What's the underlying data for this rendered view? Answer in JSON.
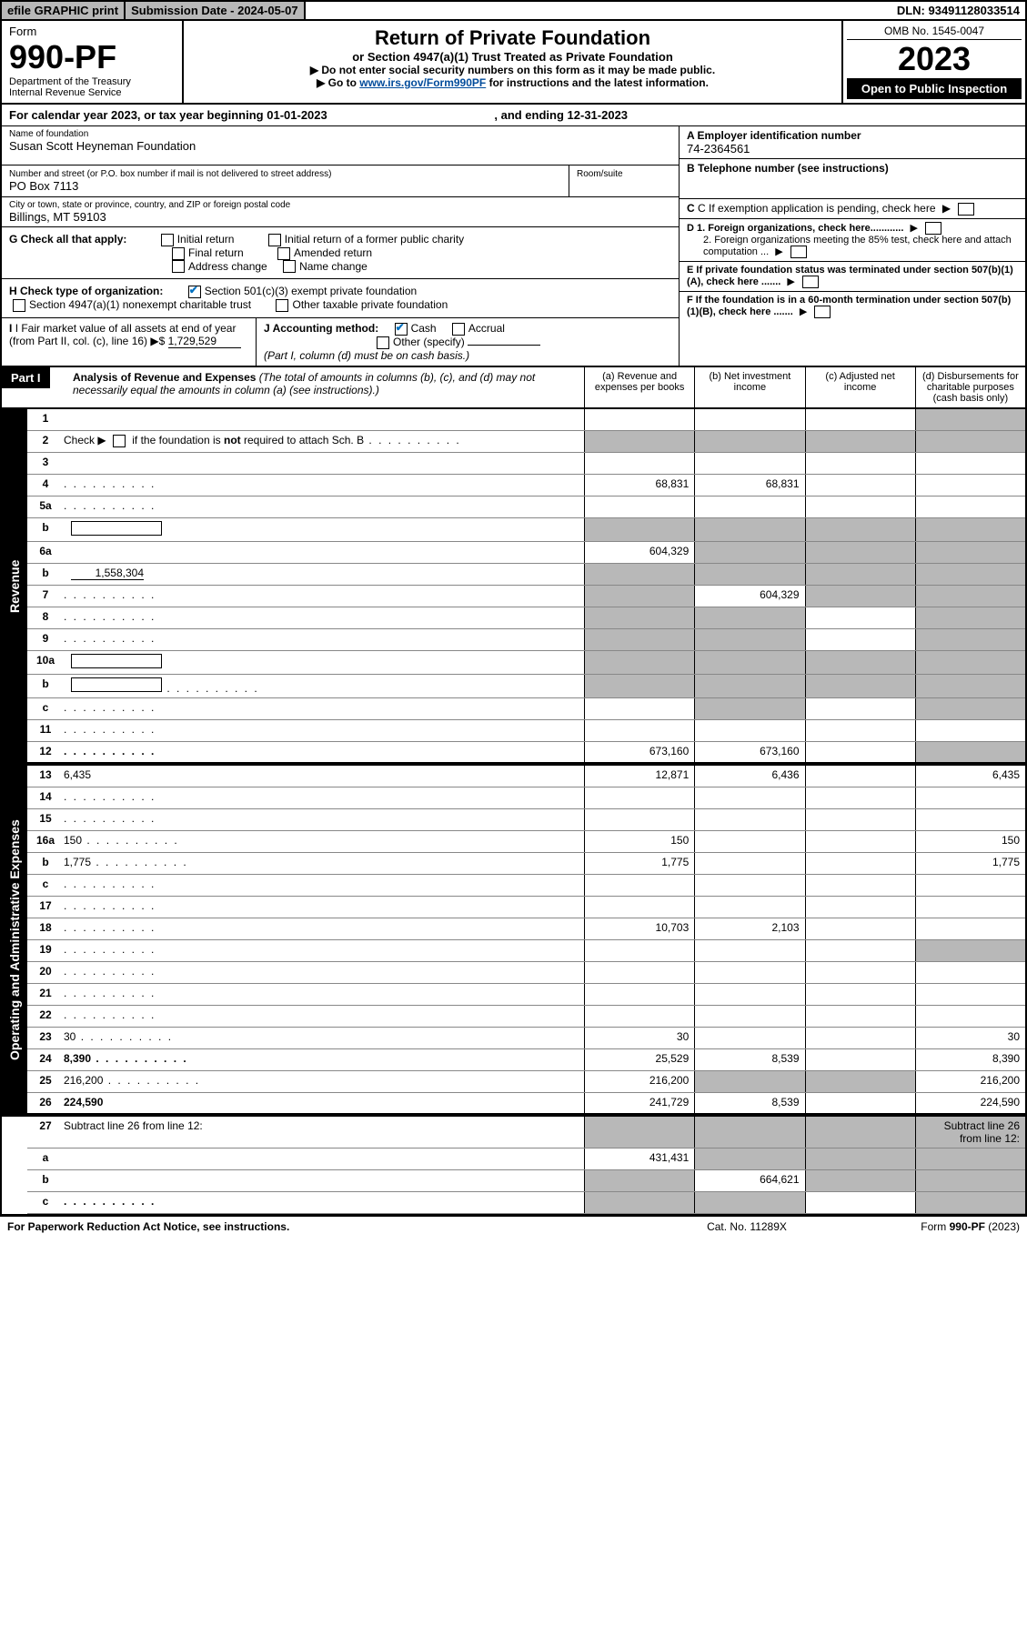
{
  "topbar": {
    "efile": "efile GRAPHIC print",
    "sub_label": "Submission Date - 2024-05-07",
    "dln": "DLN: 93491128033514"
  },
  "header": {
    "form_word": "Form",
    "form_num": "990-PF",
    "dept": "Department of the Treasury",
    "irs": "Internal Revenue Service",
    "title": "Return of Private Foundation",
    "subtitle": "or Section 4947(a)(1) Trust Treated as Private Foundation",
    "instr1": "▶ Do not enter social security numbers on this form as it may be made public.",
    "instr2_pre": "▶ Go to ",
    "instr2_link": "www.irs.gov/Form990PF",
    "instr2_post": " for instructions and the latest information.",
    "omb": "OMB No. 1545-0047",
    "year": "2023",
    "open": "Open to Public Inspection"
  },
  "cal_year": {
    "pre": "For calendar year 2023, or tax year beginning ",
    "begin": "01-01-2023",
    "mid": " , and ending ",
    "end": "12-31-2023"
  },
  "info": {
    "name_label": "Name of foundation",
    "name": "Susan Scott Heyneman Foundation",
    "addr_label": "Number and street (or P.O. box number if mail is not delivered to street address)",
    "room_label": "Room/suite",
    "addr": "PO Box 7113",
    "city_label": "City or town, state or province, country, and ZIP or foreign postal code",
    "city": "Billings, MT  59103",
    "a_label": "A Employer identification number",
    "a_val": "74-2364561",
    "b_label": "B Telephone number (see instructions)",
    "c_label": "C If exemption application is pending, check here",
    "d1": "D 1. Foreign organizations, check here............",
    "d2": "2. Foreign organizations meeting the 85% test, check here and attach computation ...",
    "e": "E  If private foundation status was terminated under section 507(b)(1)(A), check here .......",
    "f": "F  If the foundation is in a 60-month termination under section 507(b)(1)(B), check here .......",
    "g_label": "G Check all that apply:",
    "g_opts": [
      "Initial return",
      "Initial return of a former public charity",
      "Final return",
      "Amended return",
      "Address change",
      "Name change"
    ],
    "h_label": "H Check type of organization:",
    "h_opts": [
      "Section 501(c)(3) exempt private foundation",
      "Section 4947(a)(1) nonexempt charitable trust",
      "Other taxable private foundation"
    ],
    "i_label": "I Fair market value of all assets at end of year (from Part II, col. (c), line 16) ▶$ ",
    "i_val": "1,729,529",
    "j_label": "J Accounting method:",
    "j_opts": [
      "Cash",
      "Accrual",
      "Other (specify)"
    ],
    "j_note": "(Part I, column (d) must be on cash basis.)"
  },
  "part1": {
    "label": "Part I",
    "title": "Analysis of Revenue and Expenses",
    "note": " (The total of amounts in columns (b), (c), and (d) may not necessarily equal the amounts in column (a) (see instructions).)",
    "cols": {
      "a": "(a)  Revenue and expenses per books",
      "b": "(b)  Net investment income",
      "c": "(c)  Adjusted net income",
      "d": "(d)  Disbursements for charitable purposes (cash basis only)"
    }
  },
  "sides": {
    "rev": "Revenue",
    "exp": "Operating and Administrative Expenses"
  },
  "lines": [
    {
      "n": "1",
      "d": "",
      "a": "",
      "b": "",
      "c": "",
      "greyD": true
    },
    {
      "n": "2",
      "d": "",
      "a": "",
      "b": "",
      "c": "",
      "greyAll": true,
      "htmlDesc": true,
      "dots": true
    },
    {
      "n": "3",
      "d": "",
      "a": "",
      "b": "",
      "c": ""
    },
    {
      "n": "4",
      "d": "",
      "a": "68,831",
      "b": "68,831",
      "c": "",
      "dots": true
    },
    {
      "n": "5a",
      "d": "",
      "a": "",
      "b": "",
      "c": "",
      "dots": true
    },
    {
      "n": "b",
      "d": "",
      "a": "",
      "b": "",
      "c": "",
      "greyAll": true,
      "inlineBox": true
    },
    {
      "n": "6a",
      "d": "",
      "a": "604,329",
      "b": "",
      "c": "",
      "greyB": true,
      "greyC": true,
      "greyD": true
    },
    {
      "n": "b",
      "d": "",
      "a": "",
      "b": "",
      "c": "",
      "greyAll": true,
      "inlineVal": "1,558,304"
    },
    {
      "n": "7",
      "d": "",
      "a": "",
      "b": "604,329",
      "c": "",
      "greyA": true,
      "greyC": true,
      "greyD": true,
      "dots": true
    },
    {
      "n": "8",
      "d": "",
      "a": "",
      "b": "",
      "c": "",
      "greyA": true,
      "greyB": true,
      "greyD": true,
      "dots": true
    },
    {
      "n": "9",
      "d": "",
      "a": "",
      "b": "",
      "c": "",
      "greyA": true,
      "greyB": true,
      "greyD": true,
      "dots": true
    },
    {
      "n": "10a",
      "d": "",
      "a": "",
      "b": "",
      "c": "",
      "greyAll": true,
      "inlineBox": true
    },
    {
      "n": "b",
      "d": "",
      "a": "",
      "b": "",
      "c": "",
      "greyAll": true,
      "inlineBox": true,
      "dots": true
    },
    {
      "n": "c",
      "d": "",
      "a": "",
      "b": "",
      "c": "",
      "greyB": true,
      "greyD": true,
      "dots": true
    },
    {
      "n": "11",
      "d": "",
      "a": "",
      "b": "",
      "c": "",
      "dots": true
    },
    {
      "n": "12",
      "d": "",
      "a": "673,160",
      "b": "673,160",
      "c": "",
      "bold": true,
      "greyD": true,
      "dots": true,
      "dbl": true
    }
  ],
  "exp_lines": [
    {
      "n": "13",
      "d": "6,435",
      "a": "12,871",
      "b": "6,436",
      "c": ""
    },
    {
      "n": "14",
      "d": "",
      "a": "",
      "b": "",
      "c": "",
      "dots": true
    },
    {
      "n": "15",
      "d": "",
      "a": "",
      "b": "",
      "c": "",
      "dots": true
    },
    {
      "n": "16a",
      "d": "150",
      "a": "150",
      "b": "",
      "c": "",
      "dots": true
    },
    {
      "n": "b",
      "d": "1,775",
      "a": "1,775",
      "b": "",
      "c": "",
      "dots": true
    },
    {
      "n": "c",
      "d": "",
      "a": "",
      "b": "",
      "c": "",
      "dots": true
    },
    {
      "n": "17",
      "d": "",
      "a": "",
      "b": "",
      "c": "",
      "dots": true
    },
    {
      "n": "18",
      "d": "",
      "a": "10,703",
      "b": "2,103",
      "c": "",
      "dots": true
    },
    {
      "n": "19",
      "d": "",
      "a": "",
      "b": "",
      "c": "",
      "greyD": true,
      "dots": true
    },
    {
      "n": "20",
      "d": "",
      "a": "",
      "b": "",
      "c": "",
      "dots": true
    },
    {
      "n": "21",
      "d": "",
      "a": "",
      "b": "",
      "c": "",
      "dots": true
    },
    {
      "n": "22",
      "d": "",
      "a": "",
      "b": "",
      "c": "",
      "dots": true
    },
    {
      "n": "23",
      "d": "30",
      "a": "30",
      "b": "",
      "c": "",
      "dots": true
    },
    {
      "n": "24",
      "d": "8,390",
      "a": "25,529",
      "b": "8,539",
      "c": "",
      "bold": true,
      "dots": true
    },
    {
      "n": "25",
      "d": "216,200",
      "a": "216,200",
      "b": "",
      "c": "",
      "greyB": true,
      "greyC": true,
      "dots": true
    },
    {
      "n": "26",
      "d": "224,590",
      "a": "241,729",
      "b": "8,539",
      "c": "",
      "bold": true,
      "dbl": true
    }
  ],
  "bottom_lines": [
    {
      "n": "27",
      "d": "Subtract line 26 from line 12:",
      "greyAll": true
    },
    {
      "n": "a",
      "d": "",
      "a": "431,431",
      "b": "",
      "c": "",
      "bold": true,
      "greyB": true,
      "greyC": true,
      "greyD": true
    },
    {
      "n": "b",
      "d": "",
      "a": "",
      "b": "664,621",
      "c": "",
      "bold": true,
      "greyA": true,
      "greyC": true,
      "greyD": true
    },
    {
      "n": "c",
      "d": "",
      "a": "",
      "b": "",
      "c": "",
      "bold": true,
      "greyA": true,
      "greyB": true,
      "greyD": true,
      "dots": true
    }
  ],
  "footer": {
    "left": "For Paperwork Reduction Act Notice, see instructions.",
    "mid": "Cat. No. 11289X",
    "right": "Form 990-PF (2023)"
  }
}
